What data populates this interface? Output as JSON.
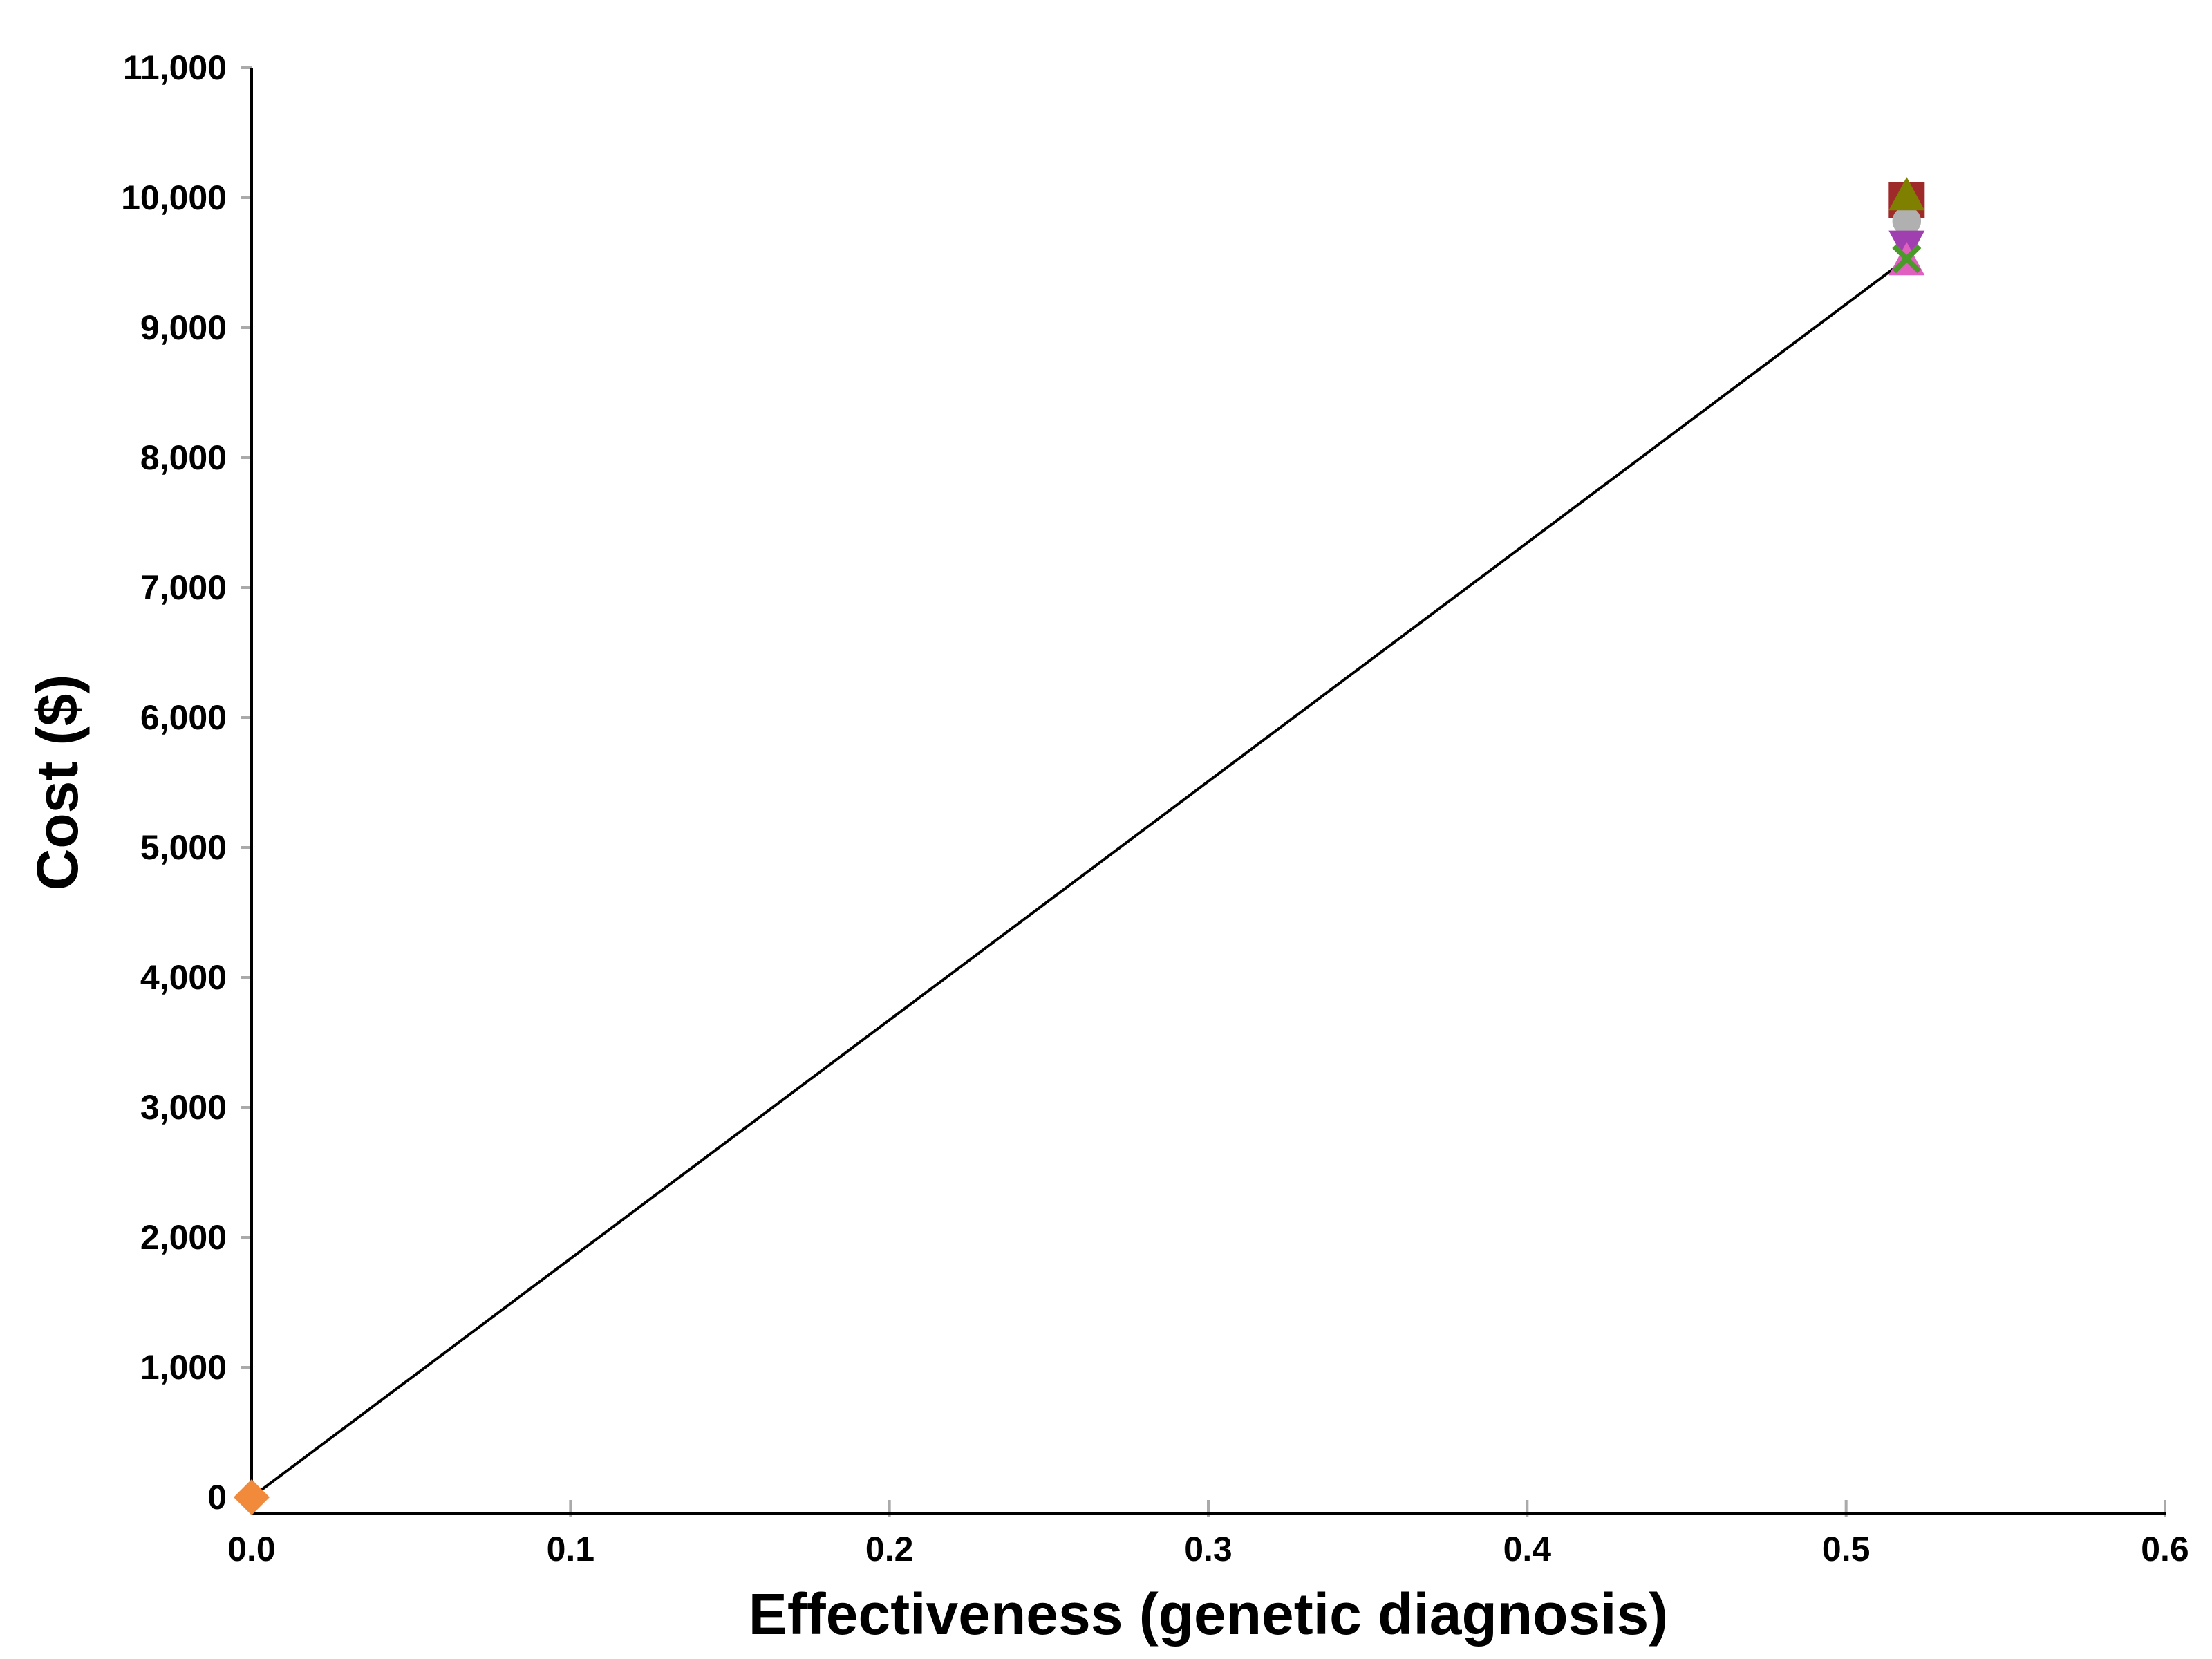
{
  "chart_data": {
    "type": "scatter",
    "title": "",
    "xlabel": "Effectiveness (genetic diagnosis)",
    "ylabel": "Cost ($)",
    "xlim": [
      0,
      0.6
    ],
    "ylim": [
      0,
      11000
    ],
    "x_ticks": [
      0.0,
      0.1,
      0.2,
      0.3,
      0.4,
      0.5,
      0.6
    ],
    "x_tick_labels": [
      "0.0",
      "0.1",
      "0.2",
      "0.3",
      "0.4",
      "0.5",
      "0.6"
    ],
    "y_ticks": [
      0,
      1000,
      2000,
      3000,
      4000,
      5000,
      6000,
      7000,
      8000,
      9000,
      10000,
      11000
    ],
    "y_tick_labels": [
      "0",
      "1,000",
      "2,000",
      "3,000",
      "4,000",
      "5,000",
      "6,000",
      "7,000",
      "8,000",
      "9,000",
      "10,000",
      "11,000"
    ],
    "grid": false,
    "legend": "none",
    "frontier_line": {
      "color": "#000000",
      "points": [
        [
          0,
          0
        ],
        [
          0.519,
          9530
        ]
      ]
    },
    "series": [
      {
        "marker": "diamond",
        "color": "#f28a3c",
        "x": [
          0.0
        ],
        "y": [
          0
        ]
      },
      {
        "marker": "square",
        "color": "#9e2a2a",
        "x": [
          0.519
        ],
        "y": [
          9980
        ]
      },
      {
        "marker": "circle",
        "color": "#b0b0b0",
        "x": [
          0.519
        ],
        "y": [
          9820
        ]
      },
      {
        "marker": "triangle-up",
        "color": "#808000",
        "x": [
          0.519
        ],
        "y": [
          10000
        ]
      },
      {
        "marker": "triangle-down",
        "color": "#a040b0",
        "x": [
          0.519
        ],
        "y": [
          9650
        ]
      },
      {
        "marker": "triangle-up",
        "color": "#e060c0",
        "x": [
          0.519
        ],
        "y": [
          9500
        ]
      },
      {
        "marker": "x",
        "color": "#4a9a2a",
        "x": [
          0.519
        ],
        "y": [
          9530
        ]
      }
    ]
  }
}
